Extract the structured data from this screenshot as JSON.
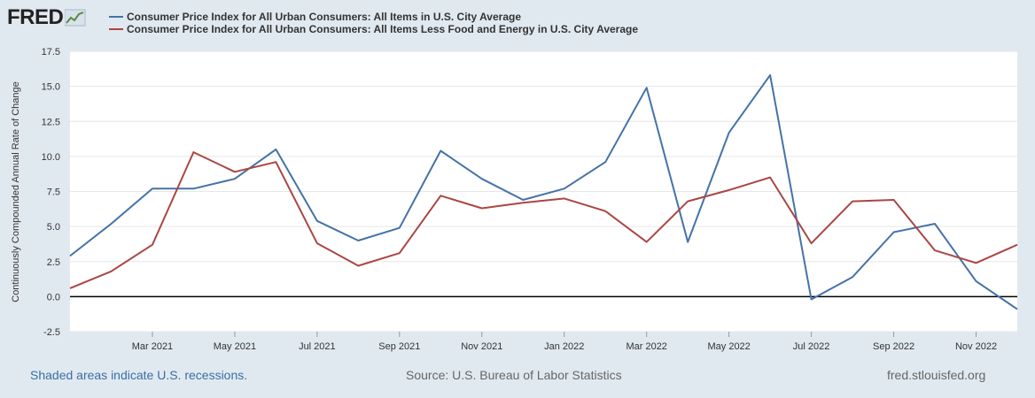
{
  "logo": {
    "text": "FRED",
    "icon": "fred-chart-icon"
  },
  "footer": {
    "recession_note": "Shaded areas indicate U.S. recessions.",
    "source": "Source: U.S. Bureau of Labor Statistics",
    "site": "fred.stlouisfed.org"
  },
  "chart_data": {
    "type": "line",
    "title": "",
    "xlabel": "",
    "ylabel": "Continuously Compounded Annual Rate of Change",
    "ylim": [
      -2.5,
      17.5
    ],
    "yticks": [
      -2.5,
      0.0,
      2.5,
      5.0,
      7.5,
      10.0,
      12.5,
      15.0,
      17.5
    ],
    "ytick_labels": [
      "-2.5",
      "0.0",
      "2.5",
      "5.0",
      "7.5",
      "10.0",
      "12.5",
      "15.0",
      "17.5"
    ],
    "x": [
      "2021-01",
      "2021-02",
      "2021-03",
      "2021-04",
      "2021-05",
      "2021-06",
      "2021-07",
      "2021-08",
      "2021-09",
      "2021-10",
      "2021-11",
      "2021-12",
      "2022-01",
      "2022-02",
      "2022-03",
      "2022-04",
      "2022-05",
      "2022-06",
      "2022-07",
      "2022-08",
      "2022-09",
      "2022-10",
      "2022-11",
      "2022-12"
    ],
    "xtick_labels": [
      "Mar 2021",
      "May 2021",
      "Jul 2021",
      "Sep 2021",
      "Nov 2021",
      "Jan 2022",
      "Mar 2022",
      "May 2022",
      "Jul 2022",
      "Sep 2022",
      "Nov 2022"
    ],
    "xtick_positions": [
      "2021-03",
      "2021-05",
      "2021-07",
      "2021-09",
      "2021-11",
      "2022-01",
      "2022-03",
      "2022-05",
      "2022-07",
      "2022-09",
      "2022-11"
    ],
    "grid": true,
    "legend_position": "top",
    "series": [
      {
        "name": "Consumer Price Index for All Urban Consumers: All Items in U.S. City Average",
        "color": "#4572a7",
        "values": [
          2.9,
          5.2,
          7.7,
          7.7,
          8.4,
          10.5,
          5.4,
          4.0,
          4.9,
          10.4,
          8.4,
          6.9,
          7.7,
          9.6,
          14.9,
          3.9,
          11.7,
          15.8,
          -0.2,
          1.4,
          4.6,
          5.2,
          1.1,
          -0.9
        ]
      },
      {
        "name": "Consumer Price Index for All Urban Consumers: All Items Less Food and Energy in U.S. City Average",
        "color": "#aa4643",
        "values": [
          0.6,
          1.8,
          3.7,
          10.3,
          8.9,
          9.6,
          3.8,
          2.2,
          3.1,
          7.2,
          6.3,
          6.7,
          7.0,
          6.1,
          3.9,
          6.8,
          7.6,
          8.5,
          3.8,
          6.8,
          6.9,
          3.3,
          2.4,
          3.7
        ]
      }
    ]
  }
}
